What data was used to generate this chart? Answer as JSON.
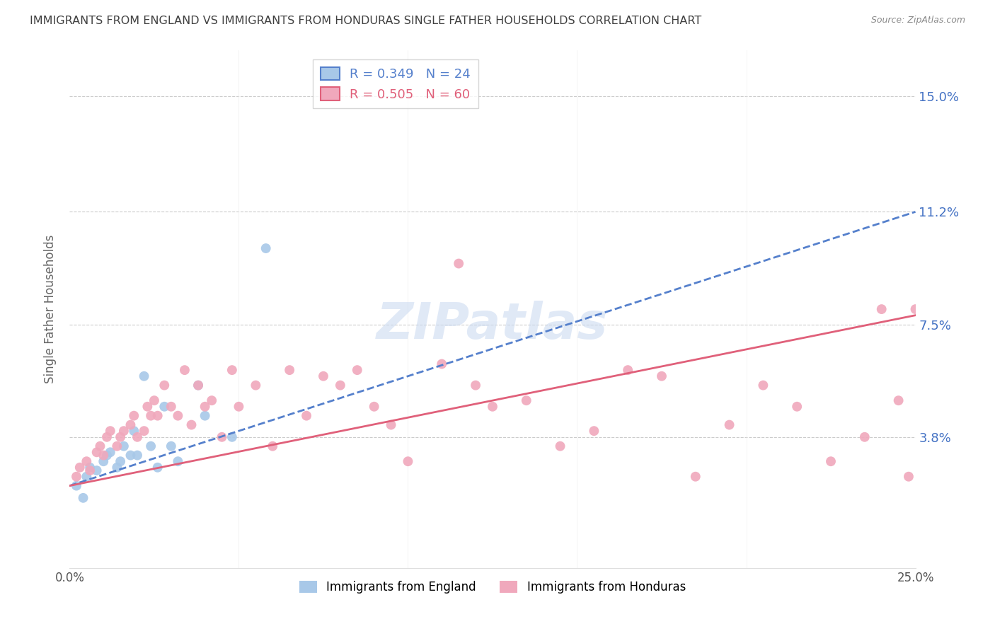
{
  "title": "IMMIGRANTS FROM ENGLAND VS IMMIGRANTS FROM HONDURAS SINGLE FATHER HOUSEHOLDS CORRELATION CHART",
  "source": "Source: ZipAtlas.com",
  "ylabel": "Single Father Households",
  "ytick_labels": [
    "15.0%",
    "11.2%",
    "7.5%",
    "3.8%"
  ],
  "ytick_values": [
    0.15,
    0.112,
    0.075,
    0.038
  ],
  "xlim": [
    0.0,
    0.25
  ],
  "ylim": [
    -0.005,
    0.165
  ],
  "england_R": 0.349,
  "england_N": 24,
  "honduras_R": 0.505,
  "honduras_N": 60,
  "england_color": "#a8c8e8",
  "honduras_color": "#f0a8bc",
  "england_line_color": "#5580cc",
  "honduras_line_color": "#e0607a",
  "background_color": "#ffffff",
  "grid_color": "#cccccc",
  "axis_label_color": "#4472c4",
  "title_color": "#404040",
  "watermark_color": "#c8d8f0",
  "england_x": [
    0.002,
    0.004,
    0.005,
    0.006,
    0.008,
    0.01,
    0.011,
    0.012,
    0.014,
    0.015,
    0.016,
    0.018,
    0.019,
    0.02,
    0.022,
    0.024,
    0.026,
    0.028,
    0.03,
    0.032,
    0.038,
    0.04,
    0.048,
    0.058
  ],
  "england_y": [
    0.022,
    0.018,
    0.025,
    0.028,
    0.027,
    0.03,
    0.032,
    0.033,
    0.028,
    0.03,
    0.035,
    0.032,
    0.04,
    0.032,
    0.058,
    0.035,
    0.028,
    0.048,
    0.035,
    0.03,
    0.055,
    0.045,
    0.038,
    0.1
  ],
  "honduras_x": [
    0.002,
    0.003,
    0.005,
    0.006,
    0.008,
    0.009,
    0.01,
    0.011,
    0.012,
    0.014,
    0.015,
    0.016,
    0.018,
    0.019,
    0.02,
    0.022,
    0.023,
    0.024,
    0.025,
    0.026,
    0.028,
    0.03,
    0.032,
    0.034,
    0.036,
    0.038,
    0.04,
    0.042,
    0.045,
    0.048,
    0.05,
    0.055,
    0.06,
    0.065,
    0.07,
    0.075,
    0.08,
    0.085,
    0.09,
    0.095,
    0.1,
    0.11,
    0.115,
    0.12,
    0.125,
    0.135,
    0.145,
    0.155,
    0.165,
    0.175,
    0.185,
    0.195,
    0.205,
    0.215,
    0.225,
    0.235,
    0.24,
    0.245,
    0.248,
    0.25
  ],
  "honduras_y": [
    0.025,
    0.028,
    0.03,
    0.027,
    0.033,
    0.035,
    0.032,
    0.038,
    0.04,
    0.035,
    0.038,
    0.04,
    0.042,
    0.045,
    0.038,
    0.04,
    0.048,
    0.045,
    0.05,
    0.045,
    0.055,
    0.048,
    0.045,
    0.06,
    0.042,
    0.055,
    0.048,
    0.05,
    0.038,
    0.06,
    0.048,
    0.055,
    0.035,
    0.06,
    0.045,
    0.058,
    0.055,
    0.06,
    0.048,
    0.042,
    0.03,
    0.062,
    0.095,
    0.055,
    0.048,
    0.05,
    0.035,
    0.04,
    0.06,
    0.058,
    0.025,
    0.042,
    0.055,
    0.048,
    0.03,
    0.038,
    0.08,
    0.05,
    0.025,
    0.08
  ],
  "england_line_x0": 0.0,
  "england_line_y0": 0.022,
  "england_line_x1": 0.25,
  "england_line_y1": 0.112,
  "honduras_line_x0": 0.0,
  "honduras_line_y0": 0.022,
  "honduras_line_x1": 0.25,
  "honduras_line_y1": 0.078
}
